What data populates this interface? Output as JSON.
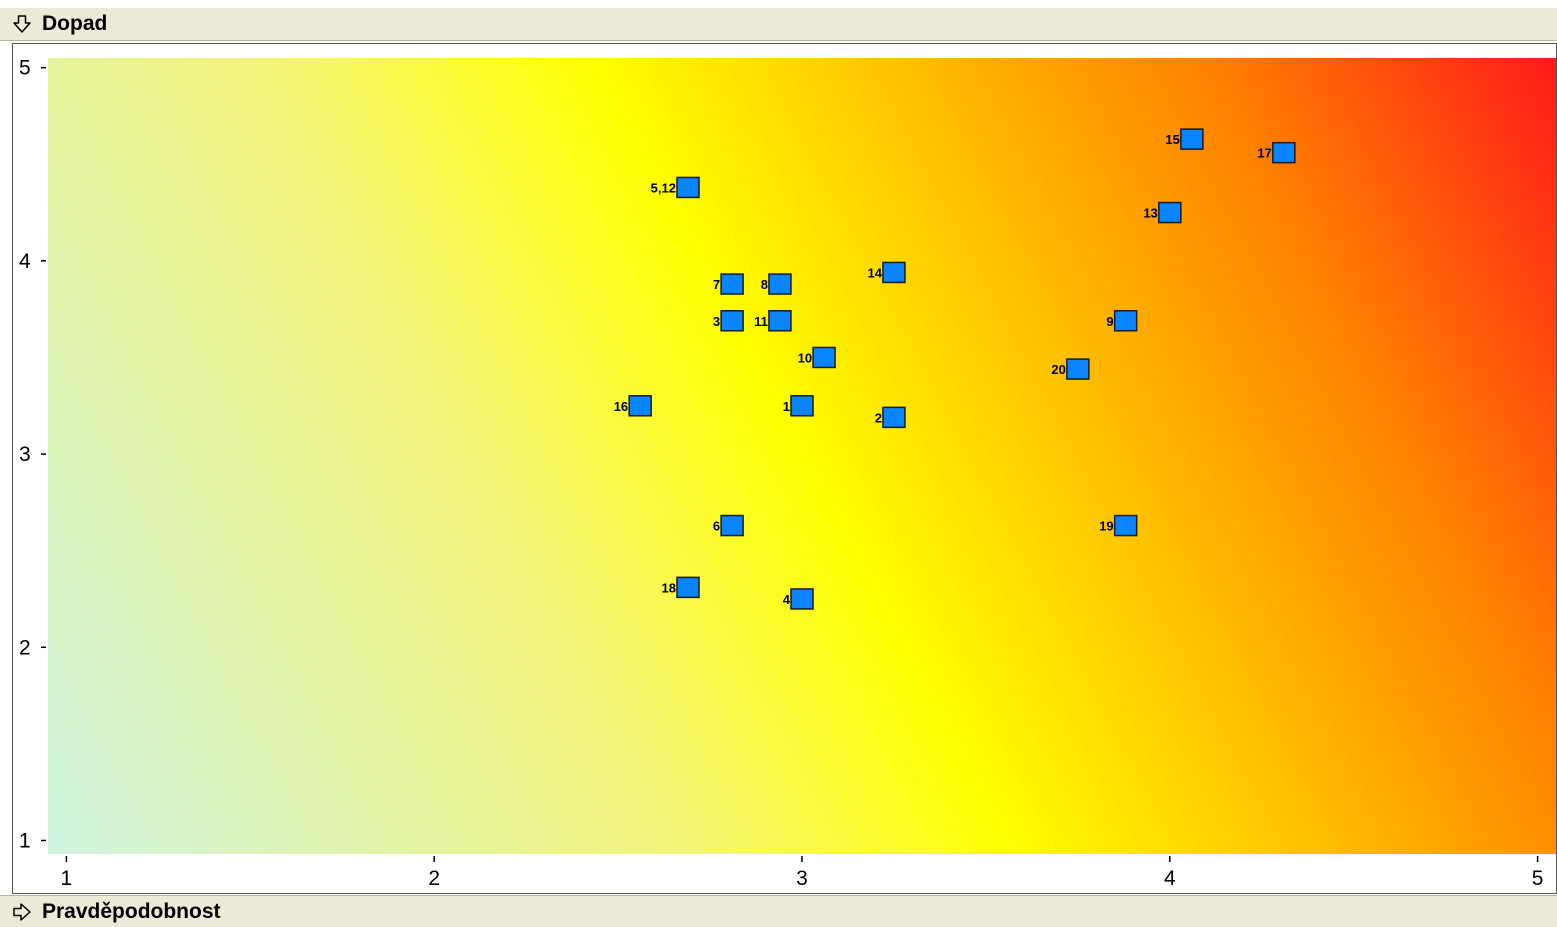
{
  "y_header": {
    "label": "Dopad",
    "icon": "arrow-down-outline-icon"
  },
  "x_header": {
    "label": "Pravděpodobnost",
    "icon": "arrow-right-outline-icon"
  },
  "chart_data": {
    "type": "scatter",
    "title": "",
    "xlabel": "Pravděpodobnost",
    "ylabel": "Dopad",
    "xlim": [
      0.95,
      5.05
    ],
    "ylim": [
      0.93,
      5.05
    ],
    "xticks": [
      1,
      2,
      3,
      4,
      5
    ],
    "yticks": [
      1,
      2,
      3,
      4,
      5
    ],
    "grid": false,
    "background": "heatmap gradient: light green (low,low) → yellow → orange → red (high,high)",
    "gradient_colors": [
      "#cff5e0",
      "#ffff00",
      "#ffc000",
      "#ff8000",
      "#ff1a1a"
    ],
    "marker_color": "#0a84ff",
    "points": [
      {
        "label": "1",
        "x": 3.0,
        "y": 3.25
      },
      {
        "label": "2",
        "x": 3.25,
        "y": 3.19
      },
      {
        "label": "3",
        "x": 2.81,
        "y": 3.69
      },
      {
        "label": "4",
        "x": 3.0,
        "y": 2.25
      },
      {
        "label": "5,12",
        "x": 2.69,
        "y": 4.38
      },
      {
        "label": "6",
        "x": 2.81,
        "y": 2.63
      },
      {
        "label": "7",
        "x": 2.81,
        "y": 3.88
      },
      {
        "label": "8",
        "x": 2.94,
        "y": 3.88
      },
      {
        "label": "9",
        "x": 3.88,
        "y": 3.69
      },
      {
        "label": "10",
        "x": 3.06,
        "y": 3.5
      },
      {
        "label": "11",
        "x": 2.94,
        "y": 3.69
      },
      {
        "label": "13",
        "x": 4.0,
        "y": 4.25
      },
      {
        "label": "14",
        "x": 3.25,
        "y": 3.94
      },
      {
        "label": "15",
        "x": 4.06,
        "y": 4.63
      },
      {
        "label": "16",
        "x": 2.56,
        "y": 3.25
      },
      {
        "label": "17",
        "x": 4.31,
        "y": 4.56
      },
      {
        "label": "18",
        "x": 2.69,
        "y": 2.31
      },
      {
        "label": "19",
        "x": 3.88,
        "y": 2.63
      },
      {
        "label": "20",
        "x": 3.75,
        "y": 3.44
      }
    ]
  }
}
